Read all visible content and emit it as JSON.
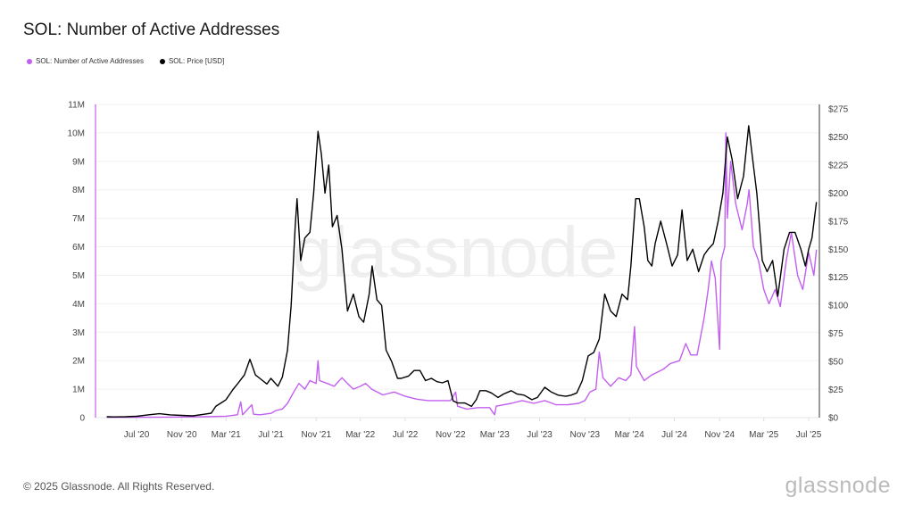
{
  "title": "SOL: Number of Active Addresses",
  "legend": [
    {
      "label": "SOL: Number of Active Addresses",
      "color": "#c35ff0"
    },
    {
      "label": "SOL: Price [USD]",
      "color": "#000000"
    }
  ],
  "footer": "© 2025 Glassnode. All Rights Reserved.",
  "brand": "glassnode",
  "watermark": "glassnode",
  "chart_data": {
    "type": "line",
    "title": "SOL: Number of Active Addresses",
    "grid": true,
    "legend_position": "top-left",
    "x_ticks": [
      {
        "label": "Jul '20",
        "date": "2020-07-01"
      },
      {
        "label": "Nov '20",
        "date": "2020-11-01"
      },
      {
        "label": "Mar '21",
        "date": "2021-03-01"
      },
      {
        "label": "Jul '21",
        "date": "2021-07-01"
      },
      {
        "label": "Nov '21",
        "date": "2021-11-01"
      },
      {
        "label": "Mar '22",
        "date": "2022-03-01"
      },
      {
        "label": "Jul '22",
        "date": "2022-07-01"
      },
      {
        "label": "Nov '22",
        "date": "2022-11-01"
      },
      {
        "label": "Mar '23",
        "date": "2023-03-01"
      },
      {
        "label": "Jul '23",
        "date": "2023-07-01"
      },
      {
        "label": "Nov '23",
        "date": "2023-11-01"
      },
      {
        "label": "Mar '24",
        "date": "2024-03-01"
      },
      {
        "label": "Jul '24",
        "date": "2024-07-01"
      },
      {
        "label": "Nov '24",
        "date": "2024-11-01"
      },
      {
        "label": "Mar '25",
        "date": "2025-03-01"
      },
      {
        "label": "Jul '25",
        "date": "2025-07-01"
      }
    ],
    "y_left": {
      "ticks": [
        "0",
        "1M",
        "2M",
        "3M",
        "4M",
        "5M",
        "6M",
        "7M",
        "8M",
        "9M",
        "10M",
        "11M"
      ],
      "range": [
        0,
        11000000
      ]
    },
    "y_right": {
      "ticks": [
        "$0",
        "$25",
        "$50",
        "$75",
        "$100",
        "$125",
        "$150",
        "$175",
        "$200",
        "$225",
        "$250",
        "$275"
      ],
      "range": [
        0,
        275
      ]
    },
    "series": [
      {
        "name": "SOL: Number of Active Addresses",
        "axis": "left",
        "unit": "M",
        "color": "#c35ff0",
        "points": [
          [
            "2020-04-11",
            0.01
          ],
          [
            "2020-10-01",
            0.02
          ],
          [
            "2021-01-01",
            0.03
          ],
          [
            "2021-03-01",
            0.05
          ],
          [
            "2021-04-01",
            0.1
          ],
          [
            "2021-04-10",
            0.55
          ],
          [
            "2021-04-15",
            0.1
          ],
          [
            "2021-05-10",
            0.45
          ],
          [
            "2021-05-15",
            0.12
          ],
          [
            "2021-06-01",
            0.1
          ],
          [
            "2021-07-01",
            0.15
          ],
          [
            "2021-07-15",
            0.25
          ],
          [
            "2021-08-01",
            0.3
          ],
          [
            "2021-08-15",
            0.5
          ],
          [
            "2021-09-01",
            0.9
          ],
          [
            "2021-09-15",
            1.2
          ],
          [
            "2021-10-01",
            1.0
          ],
          [
            "2021-10-15",
            1.3
          ],
          [
            "2021-11-01",
            1.2
          ],
          [
            "2021-11-06",
            2.0
          ],
          [
            "2021-11-10",
            1.3
          ],
          [
            "2021-12-01",
            1.2
          ],
          [
            "2021-12-20",
            1.1
          ],
          [
            "2022-01-10",
            1.4
          ],
          [
            "2022-01-25",
            1.2
          ],
          [
            "2022-02-10",
            1.0
          ],
          [
            "2022-03-01",
            1.1
          ],
          [
            "2022-03-15",
            1.2
          ],
          [
            "2022-04-01",
            1.0
          ],
          [
            "2022-05-01",
            0.8
          ],
          [
            "2022-06-01",
            0.9
          ],
          [
            "2022-07-01",
            0.75
          ],
          [
            "2022-08-01",
            0.65
          ],
          [
            "2022-09-01",
            0.6
          ],
          [
            "2022-10-01",
            0.6
          ],
          [
            "2022-11-01",
            0.6
          ],
          [
            "2022-11-15",
            0.9
          ],
          [
            "2022-11-20",
            0.4
          ],
          [
            "2022-12-15",
            0.3
          ],
          [
            "2023-01-15",
            0.35
          ],
          [
            "2023-02-15",
            0.35
          ],
          [
            "2023-03-01",
            0.1
          ],
          [
            "2023-03-05",
            0.4
          ],
          [
            "2023-04-15",
            0.5
          ],
          [
            "2023-05-15",
            0.6
          ],
          [
            "2023-06-15",
            0.5
          ],
          [
            "2023-07-15",
            0.6
          ],
          [
            "2023-08-15",
            0.45
          ],
          [
            "2023-09-15",
            0.45
          ],
          [
            "2023-10-15",
            0.5
          ],
          [
            "2023-11-01",
            0.6
          ],
          [
            "2023-11-15",
            0.9
          ],
          [
            "2023-12-01",
            1.0
          ],
          [
            "2023-12-10",
            2.3
          ],
          [
            "2023-12-20",
            1.4
          ],
          [
            "2024-01-10",
            1.1
          ],
          [
            "2024-02-01",
            1.4
          ],
          [
            "2024-02-20",
            1.3
          ],
          [
            "2024-03-05",
            1.5
          ],
          [
            "2024-03-15",
            3.2
          ],
          [
            "2024-03-20",
            1.8
          ],
          [
            "2024-04-10",
            1.3
          ],
          [
            "2024-05-01",
            1.5
          ],
          [
            "2024-06-01",
            1.7
          ],
          [
            "2024-06-20",
            1.9
          ],
          [
            "2024-07-15",
            2.0
          ],
          [
            "2024-08-01",
            2.6
          ],
          [
            "2024-08-15",
            2.2
          ],
          [
            "2024-09-01",
            2.2
          ],
          [
            "2024-09-20",
            3.5
          ],
          [
            "2024-10-01",
            4.5
          ],
          [
            "2024-10-10",
            5.5
          ],
          [
            "2024-10-20",
            4.9
          ],
          [
            "2024-11-01",
            2.4
          ],
          [
            "2024-11-05",
            5.5
          ],
          [
            "2024-11-15",
            6.0
          ],
          [
            "2024-11-18",
            10.0
          ],
          [
            "2024-11-22",
            7.0
          ],
          [
            "2024-12-01",
            9.0
          ],
          [
            "2024-12-15",
            7.5
          ],
          [
            "2025-01-01",
            6.6
          ],
          [
            "2025-01-15",
            7.5
          ],
          [
            "2025-01-20",
            8.0
          ],
          [
            "2025-02-01",
            6.0
          ],
          [
            "2025-02-15",
            5.5
          ],
          [
            "2025-03-01",
            4.5
          ],
          [
            "2025-03-15",
            4.0
          ],
          [
            "2025-04-01",
            4.5
          ],
          [
            "2025-04-15",
            3.9
          ],
          [
            "2025-05-01",
            5.5
          ],
          [
            "2025-05-15",
            6.5
          ],
          [
            "2025-06-01",
            5.0
          ],
          [
            "2025-06-15",
            4.5
          ],
          [
            "2025-07-01",
            5.8
          ],
          [
            "2025-07-15",
            5.0
          ],
          [
            "2025-07-22",
            5.9
          ]
        ]
      },
      {
        "name": "SOL: Price [USD]",
        "axis": "right",
        "unit": "USD",
        "color": "#000000",
        "points": [
          [
            "2020-04-11",
            0.8
          ],
          [
            "2020-05-01",
            0.6
          ],
          [
            "2020-06-01",
            0.8
          ],
          [
            "2020-07-01",
            1.2
          ],
          [
            "2020-08-01",
            2.5
          ],
          [
            "2020-09-01",
            3.5
          ],
          [
            "2020-10-01",
            2.5
          ],
          [
            "2020-11-01",
            2.0
          ],
          [
            "2020-12-01",
            1.6
          ],
          [
            "2021-01-01",
            3
          ],
          [
            "2021-01-20",
            4
          ],
          [
            "2021-02-01",
            10
          ],
          [
            "2021-02-20",
            14
          ],
          [
            "2021-03-01",
            16
          ],
          [
            "2021-03-20",
            25
          ],
          [
            "2021-04-01",
            30
          ],
          [
            "2021-04-20",
            38
          ],
          [
            "2021-05-05",
            52
          ],
          [
            "2021-05-20",
            38
          ],
          [
            "2021-06-01",
            35
          ],
          [
            "2021-06-20",
            30
          ],
          [
            "2021-07-01",
            35
          ],
          [
            "2021-07-20",
            28
          ],
          [
            "2021-08-01",
            36
          ],
          [
            "2021-08-15",
            60
          ],
          [
            "2021-08-25",
            100
          ],
          [
            "2021-09-05",
            170
          ],
          [
            "2021-09-10",
            195
          ],
          [
            "2021-09-20",
            140
          ],
          [
            "2021-10-01",
            160
          ],
          [
            "2021-10-15",
            165
          ],
          [
            "2021-10-25",
            200
          ],
          [
            "2021-11-06",
            255
          ],
          [
            "2021-11-15",
            235
          ],
          [
            "2021-11-25",
            200
          ],
          [
            "2021-12-05",
            225
          ],
          [
            "2021-12-15",
            170
          ],
          [
            "2021-12-28",
            180
          ],
          [
            "2022-01-10",
            150
          ],
          [
            "2022-01-25",
            95
          ],
          [
            "2022-02-10",
            110
          ],
          [
            "2022-02-25",
            90
          ],
          [
            "2022-03-10",
            85
          ],
          [
            "2022-03-25",
            110
          ],
          [
            "2022-04-02",
            135
          ],
          [
            "2022-04-15",
            105
          ],
          [
            "2022-04-28",
            100
          ],
          [
            "2022-05-10",
            60
          ],
          [
            "2022-05-25",
            50
          ],
          [
            "2022-06-10",
            35
          ],
          [
            "2022-06-20",
            35
          ],
          [
            "2022-07-10",
            37
          ],
          [
            "2022-07-25",
            42
          ],
          [
            "2022-08-10",
            42
          ],
          [
            "2022-08-25",
            33
          ],
          [
            "2022-09-10",
            35
          ],
          [
            "2022-09-25",
            32
          ],
          [
            "2022-10-10",
            31
          ],
          [
            "2022-10-25",
            33
          ],
          [
            "2022-11-08",
            15
          ],
          [
            "2022-11-20",
            13
          ],
          [
            "2022-12-10",
            13
          ],
          [
            "2022-12-28",
            10
          ],
          [
            "2023-01-10",
            16
          ],
          [
            "2023-01-20",
            24
          ],
          [
            "2023-02-05",
            24
          ],
          [
            "2023-02-20",
            22
          ],
          [
            "2023-03-10",
            18
          ],
          [
            "2023-03-25",
            21
          ],
          [
            "2023-04-15",
            24
          ],
          [
            "2023-05-01",
            21
          ],
          [
            "2023-05-20",
            20
          ],
          [
            "2023-06-10",
            16
          ],
          [
            "2023-06-25",
            18
          ],
          [
            "2023-07-15",
            27
          ],
          [
            "2023-08-01",
            23
          ],
          [
            "2023-08-20",
            20
          ],
          [
            "2023-09-10",
            19
          ],
          [
            "2023-09-25",
            20
          ],
          [
            "2023-10-10",
            22
          ],
          [
            "2023-10-25",
            33
          ],
          [
            "2023-11-10",
            55
          ],
          [
            "2023-11-25",
            58
          ],
          [
            "2023-12-10",
            70
          ],
          [
            "2023-12-25",
            110
          ],
          [
            "2024-01-10",
            95
          ],
          [
            "2024-01-25",
            90
          ],
          [
            "2024-02-10",
            110
          ],
          [
            "2024-02-25",
            105
          ],
          [
            "2024-03-05",
            135
          ],
          [
            "2024-03-18",
            195
          ],
          [
            "2024-03-28",
            195
          ],
          [
            "2024-04-10",
            170
          ],
          [
            "2024-04-20",
            140
          ],
          [
            "2024-05-01",
            135
          ],
          [
            "2024-05-10",
            155
          ],
          [
            "2024-05-25",
            175
          ],
          [
            "2024-06-10",
            155
          ],
          [
            "2024-06-25",
            135
          ],
          [
            "2024-07-10",
            145
          ],
          [
            "2024-07-22",
            185
          ],
          [
            "2024-08-05",
            140
          ],
          [
            "2024-08-20",
            150
          ],
          [
            "2024-09-05",
            130
          ],
          [
            "2024-09-20",
            145
          ],
          [
            "2024-10-01",
            150
          ],
          [
            "2024-10-15",
            155
          ],
          [
            "2024-10-28",
            175
          ],
          [
            "2024-11-10",
            200
          ],
          [
            "2024-11-22",
            250
          ],
          [
            "2024-12-05",
            230
          ],
          [
            "2024-12-20",
            195
          ],
          [
            "2025-01-05",
            215
          ],
          [
            "2025-01-19",
            260
          ],
          [
            "2025-01-28",
            235
          ],
          [
            "2025-02-10",
            200
          ],
          [
            "2025-02-25",
            140
          ],
          [
            "2025-03-10",
            130
          ],
          [
            "2025-03-25",
            140
          ],
          [
            "2025-04-08",
            108
          ],
          [
            "2025-04-25",
            150
          ],
          [
            "2025-05-10",
            165
          ],
          [
            "2025-05-25",
            165
          ],
          [
            "2025-06-10",
            150
          ],
          [
            "2025-06-22",
            135
          ],
          [
            "2025-07-01",
            150
          ],
          [
            "2025-07-10",
            160
          ],
          [
            "2025-07-22",
            192
          ]
        ]
      }
    ]
  }
}
